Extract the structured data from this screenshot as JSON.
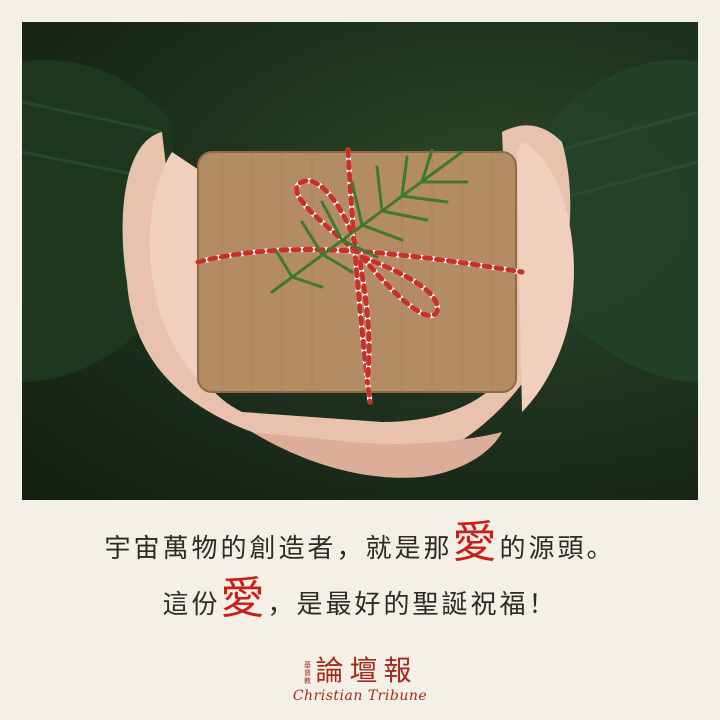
{
  "caption": {
    "line1_before": "宇宙萬物的創造者，就是那",
    "line1_highlight": "愛",
    "line1_after": "的源頭。",
    "line2_before": "這份",
    "line2_highlight": "愛",
    "line2_after": "，是最好的聖誕祝福！"
  },
  "logo": {
    "small_text": "基督教",
    "chinese_name": "論壇報",
    "english_name": "Christian Tribune"
  },
  "colors": {
    "highlight": "#c81f1a",
    "brand": "#a52a1d",
    "background": "#f4f0e6"
  },
  "photo": {
    "subject": "gift-box-icon"
  }
}
